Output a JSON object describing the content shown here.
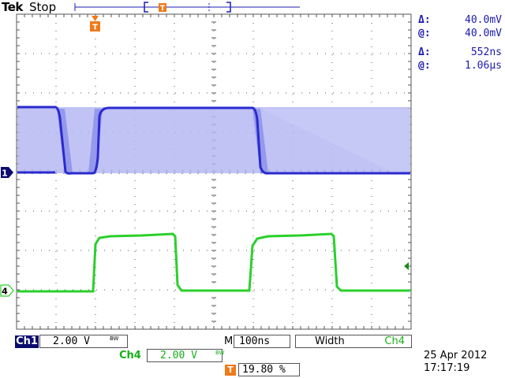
{
  "header": {
    "brand": "Tek",
    "status": "Stop"
  },
  "readouts": [
    {
      "symbol": "Δ:",
      "value": "40.0mV"
    },
    {
      "symbol": "@:",
      "value": "40.0mV"
    },
    {
      "symbol": "Δ:",
      "value": "552ns"
    },
    {
      "symbol": "@:",
      "value": "1.06µs"
    }
  ],
  "markers": {
    "ch1": "1",
    "ch4": "4",
    "trigger": "T"
  },
  "footer": {
    "ch1_label": "Ch1",
    "ch1_scale": "2.00 V",
    "ch4_label": "Ch4",
    "ch4_scale": "2.00 V",
    "bw_symbol": "BW",
    "timebase_prefix": "M",
    "timebase": "100ns",
    "trigger_mode": "Width",
    "trigger_source": "Ch4",
    "trigger_position": "19.80 %",
    "date": "25 Apr  2012",
    "time": "17:17:19"
  },
  "colors": {
    "ch1": "#2a2ad0",
    "ch1_band": "#b5b8f2",
    "ch4": "#2ad02a",
    "grid": "#555555",
    "trigger": "#f07a1a",
    "ui_dark": "#0b0b6e"
  }
}
